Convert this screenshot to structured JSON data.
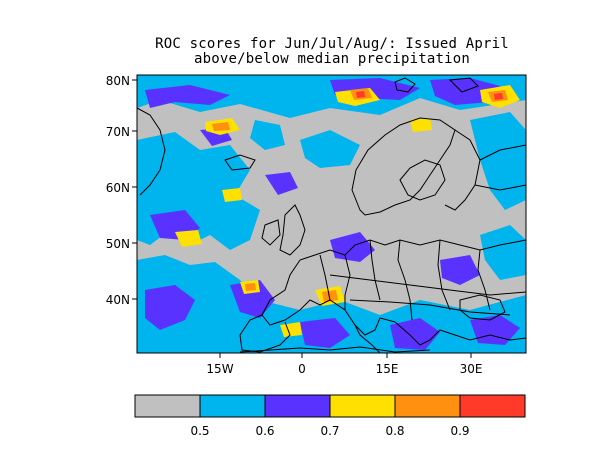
{
  "title": {
    "line1": "ROC scores for Jun/Jul/Aug/: Issued April",
    "line2": "above/below median precipitation"
  },
  "map": {
    "lat_labels": [
      "80N",
      "70N",
      "60N",
      "50N",
      "40N"
    ],
    "lon_labels": [
      "15W",
      "0",
      "15E",
      "30E"
    ],
    "background_color": "#c0c0c0",
    "border_color": "#000000"
  },
  "legend": {
    "colors": [
      "#c0c0c0",
      "#00b4ee",
      "#5a32ff",
      "#ffe000",
      "#ff9010",
      "#ff3a28"
    ],
    "tick_labels": [
      "0.5",
      "0.6",
      "0.7",
      "0.8",
      "0.9"
    ]
  }
}
